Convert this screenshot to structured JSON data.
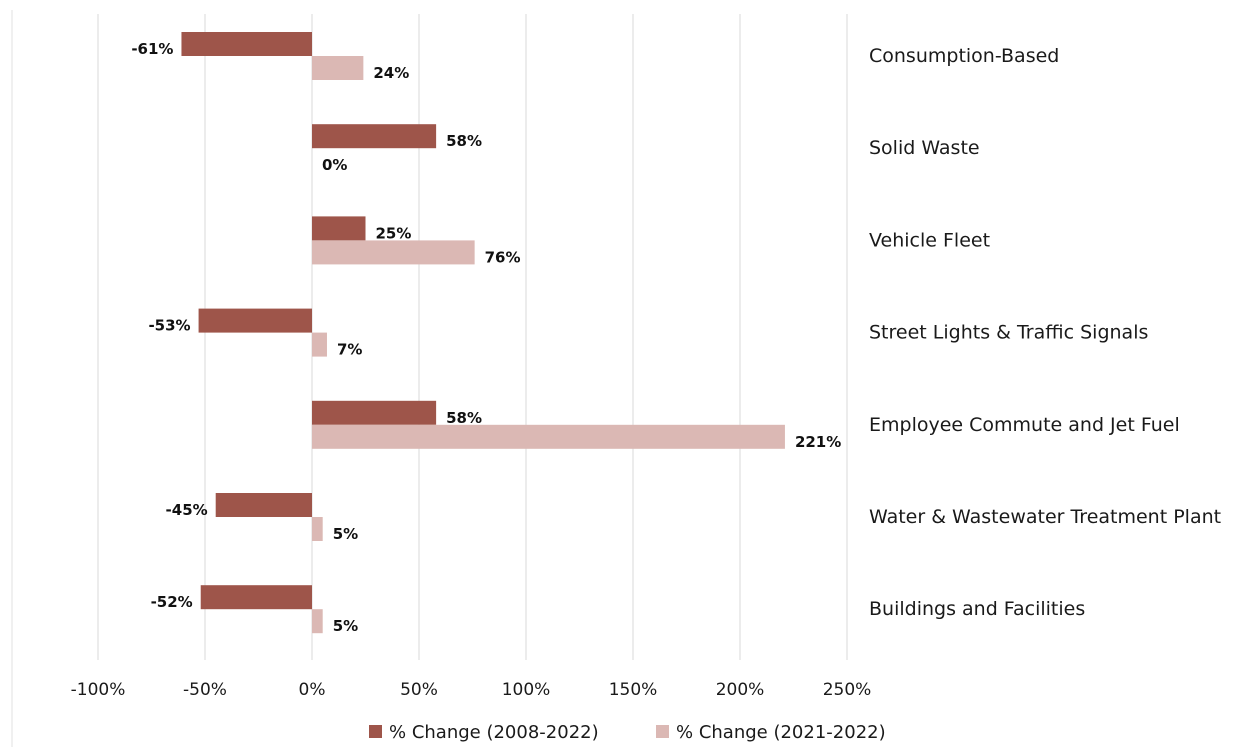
{
  "chart_data": {
    "type": "bar",
    "orientation": "horizontal",
    "categories": [
      "Consumption-Based",
      "Solid Waste",
      "Vehicle Fleet",
      "Street Lights & Traffic Signals",
      "Employee Commute and Jet Fuel",
      "Water & Wastewater Treatment Plant",
      "Buildings and Facilities"
    ],
    "series": [
      {
        "name": "% Change (2008-2022)",
        "color": "#9e554a",
        "values": [
          -61,
          58,
          25,
          -53,
          58,
          -45,
          -52
        ],
        "labels": [
          "-61%",
          "58%",
          "25%",
          "-53%",
          "58%",
          "-45%",
          "-52%"
        ]
      },
      {
        "name": "% Change (2021-2022)",
        "color": "#dbb8b4",
        "values": [
          24,
          0,
          76,
          7,
          221,
          5,
          5
        ],
        "labels": [
          "24%",
          "0%",
          "76%",
          "7%",
          "221%",
          "5%",
          "5%"
        ]
      }
    ],
    "xlim": [
      -100,
      250
    ],
    "xticks": [
      -100,
      -50,
      0,
      50,
      100,
      150,
      200,
      250
    ],
    "xtick_labels": [
      "-100%",
      "-50%",
      "0%",
      "50%",
      "100%",
      "150%",
      "200%",
      "250%"
    ],
    "grid": "vertical",
    "category_labels_position": "right",
    "legend_position": "bottom"
  }
}
